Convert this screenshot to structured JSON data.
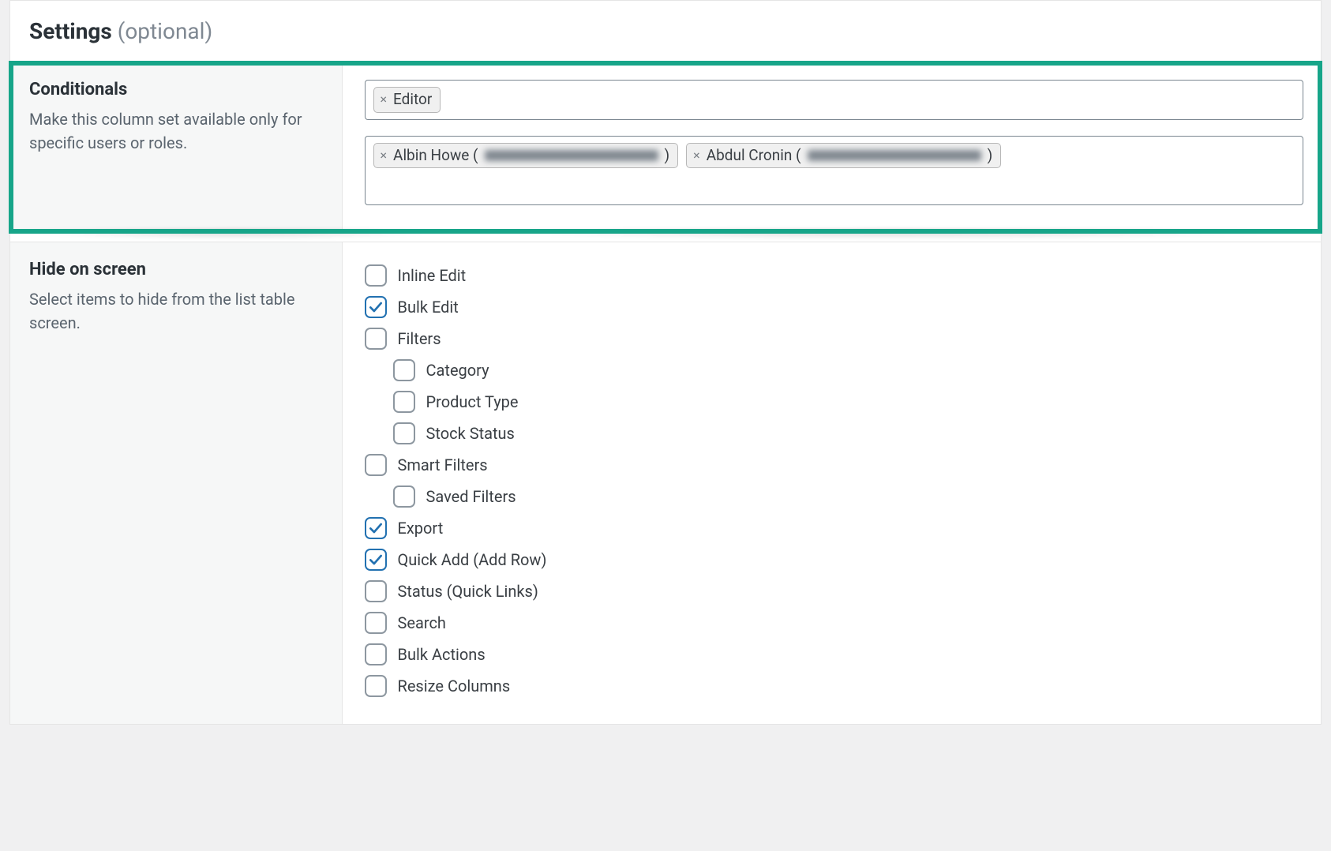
{
  "colors": {
    "page_bg": "#f0f0f1",
    "panel_bg": "#ffffff",
    "panel_border": "#e5e5e5",
    "left_col_bg": "#f6f7f7",
    "text_primary": "#2b3238",
    "text_muted": "#7f8892",
    "text_desc": "#5a646e",
    "chip_bg": "#f0f0f0",
    "chip_border": "#b7b7b7",
    "field_border": "#7a8690",
    "highlight_teal": "#17a589",
    "checkbox_border": "#8d97a0",
    "checkbox_checked": "#2271b1"
  },
  "header": {
    "title": "Settings",
    "suffix": "(optional)"
  },
  "conditionals": {
    "title": "Conditionals",
    "description": "Make this column set available only for specific users or roles.",
    "roles_field": {
      "chips": [
        {
          "label": "Editor"
        }
      ]
    },
    "users_field": {
      "chips": [
        {
          "prefix": "Albin Howe (",
          "obscured": true,
          "suffix": ")"
        },
        {
          "prefix": "Abdul Cronin (",
          "obscured": true,
          "suffix": ")"
        }
      ]
    }
  },
  "hide_on_screen": {
    "title": "Hide on screen",
    "description": "Select items to hide from the list table screen.",
    "items": [
      {
        "label": "Inline Edit",
        "checked": false,
        "indent": 0
      },
      {
        "label": "Bulk Edit",
        "checked": true,
        "indent": 0
      },
      {
        "label": "Filters",
        "checked": false,
        "indent": 0
      },
      {
        "label": "Category",
        "checked": false,
        "indent": 1
      },
      {
        "label": "Product Type",
        "checked": false,
        "indent": 1
      },
      {
        "label": "Stock Status",
        "checked": false,
        "indent": 1
      },
      {
        "label": "Smart Filters",
        "checked": false,
        "indent": 0
      },
      {
        "label": "Saved Filters",
        "checked": false,
        "indent": 1
      },
      {
        "label": "Export",
        "checked": true,
        "indent": 0
      },
      {
        "label": "Quick Add (Add Row)",
        "checked": true,
        "indent": 0
      },
      {
        "label": "Status (Quick Links)",
        "checked": false,
        "indent": 0
      },
      {
        "label": "Search",
        "checked": false,
        "indent": 0
      },
      {
        "label": "Bulk Actions",
        "checked": false,
        "indent": 0
      },
      {
        "label": "Resize Columns",
        "checked": false,
        "indent": 0
      }
    ]
  }
}
